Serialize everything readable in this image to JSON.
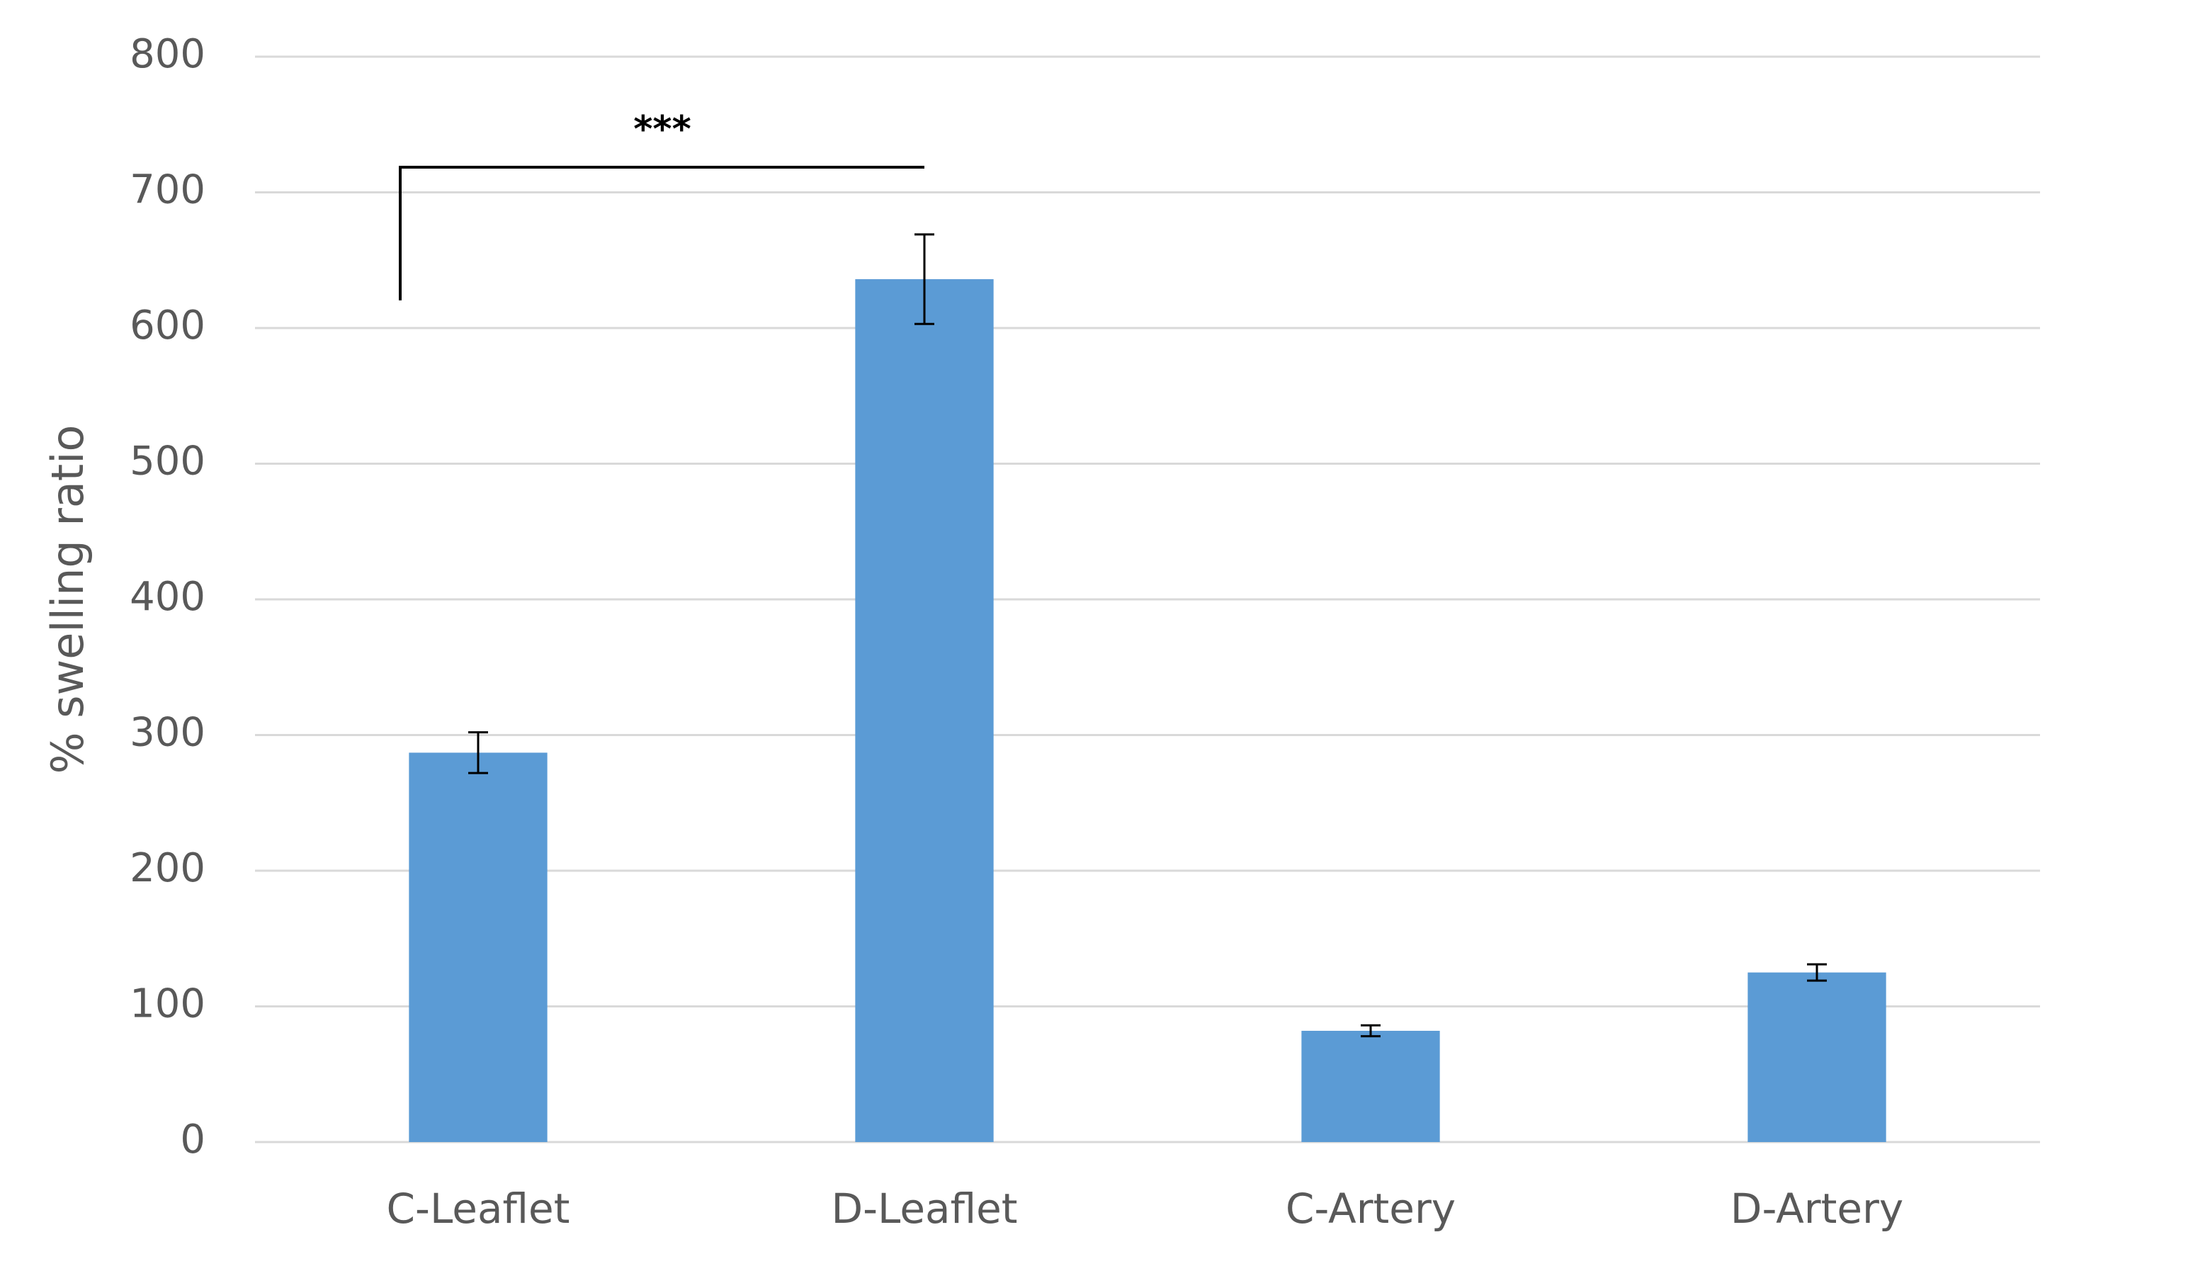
{
  "chart_data": {
    "type": "bar",
    "y_label": "% swelling ratio",
    "categories": [
      "C-Leaflet",
      "D-Leaflet",
      "C-Artery",
      "D-Artery"
    ],
    "values": [
      287,
      636,
      82,
      125
    ],
    "errors": [
      15,
      33,
      4,
      6
    ],
    "color": "#5b9bd5",
    "ylim": [
      0,
      800
    ],
    "yticks": [
      0,
      100,
      200,
      300,
      400,
      500,
      600,
      700,
      800
    ],
    "grid": true,
    "annotation": "***"
  }
}
